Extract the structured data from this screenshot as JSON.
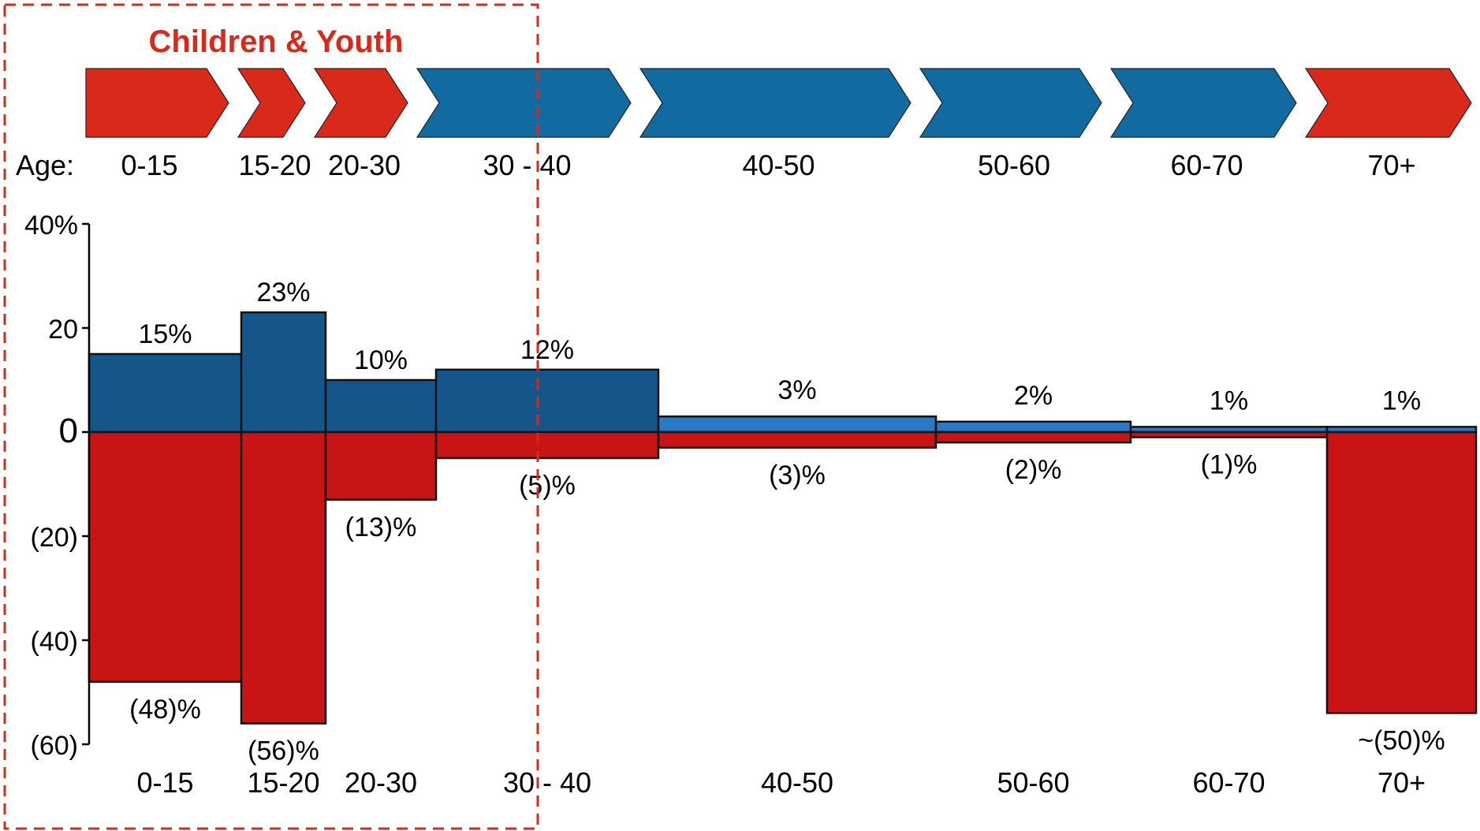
{
  "highlight_label": "Children & Youth",
  "age_label": "Age:",
  "colors": {
    "red": "#d8291a",
    "blue": "#116aa0",
    "bar_blue": "#14568a",
    "bar_blue_light": "#2a79c4",
    "bar_red": "#c81414",
    "box": "#d8291a"
  },
  "chevrons": [
    {
      "label": "0-15",
      "color": "red"
    },
    {
      "label": "15-20",
      "color": "red"
    },
    {
      "label": "20-30",
      "color": "red"
    },
    {
      "label": "30 - 40",
      "color": "blue"
    },
    {
      "label": "40-50",
      "color": "blue"
    },
    {
      "label": "50-60",
      "color": "blue"
    },
    {
      "label": "60-70",
      "color": "blue"
    },
    {
      "label": "70+",
      "color": "red"
    }
  ],
  "chart_data": {
    "type": "bar",
    "categories": [
      "0-15",
      "15-20",
      "20-30",
      "30 - 40",
      "40-50",
      "50-60",
      "60-70",
      "70+"
    ],
    "series": [
      {
        "values": [
          15,
          23,
          10,
          12,
          3,
          2,
          1,
          1
        ],
        "labels": [
          "15%",
          "23%",
          "10%",
          "12%",
          "3%",
          "2%",
          "1%",
          "1%"
        ]
      },
      {
        "values": [
          -48,
          -56,
          -13,
          -5,
          -3,
          -2,
          -1,
          -54
        ],
        "labels": [
          "(48)%",
          "(56)%",
          "(13)%",
          "(5)%",
          "(3)%",
          "(2)%",
          "(1)%",
          "~(50)%"
        ]
      }
    ],
    "yticks": [
      40,
      20,
      0,
      -20,
      -40,
      -60
    ],
    "ytick_labels": [
      "40%",
      "20",
      "0",
      "(20)",
      "(40)",
      "(60)"
    ],
    "ylim": [
      -60,
      40
    ],
    "grid": false,
    "legend": "none"
  }
}
